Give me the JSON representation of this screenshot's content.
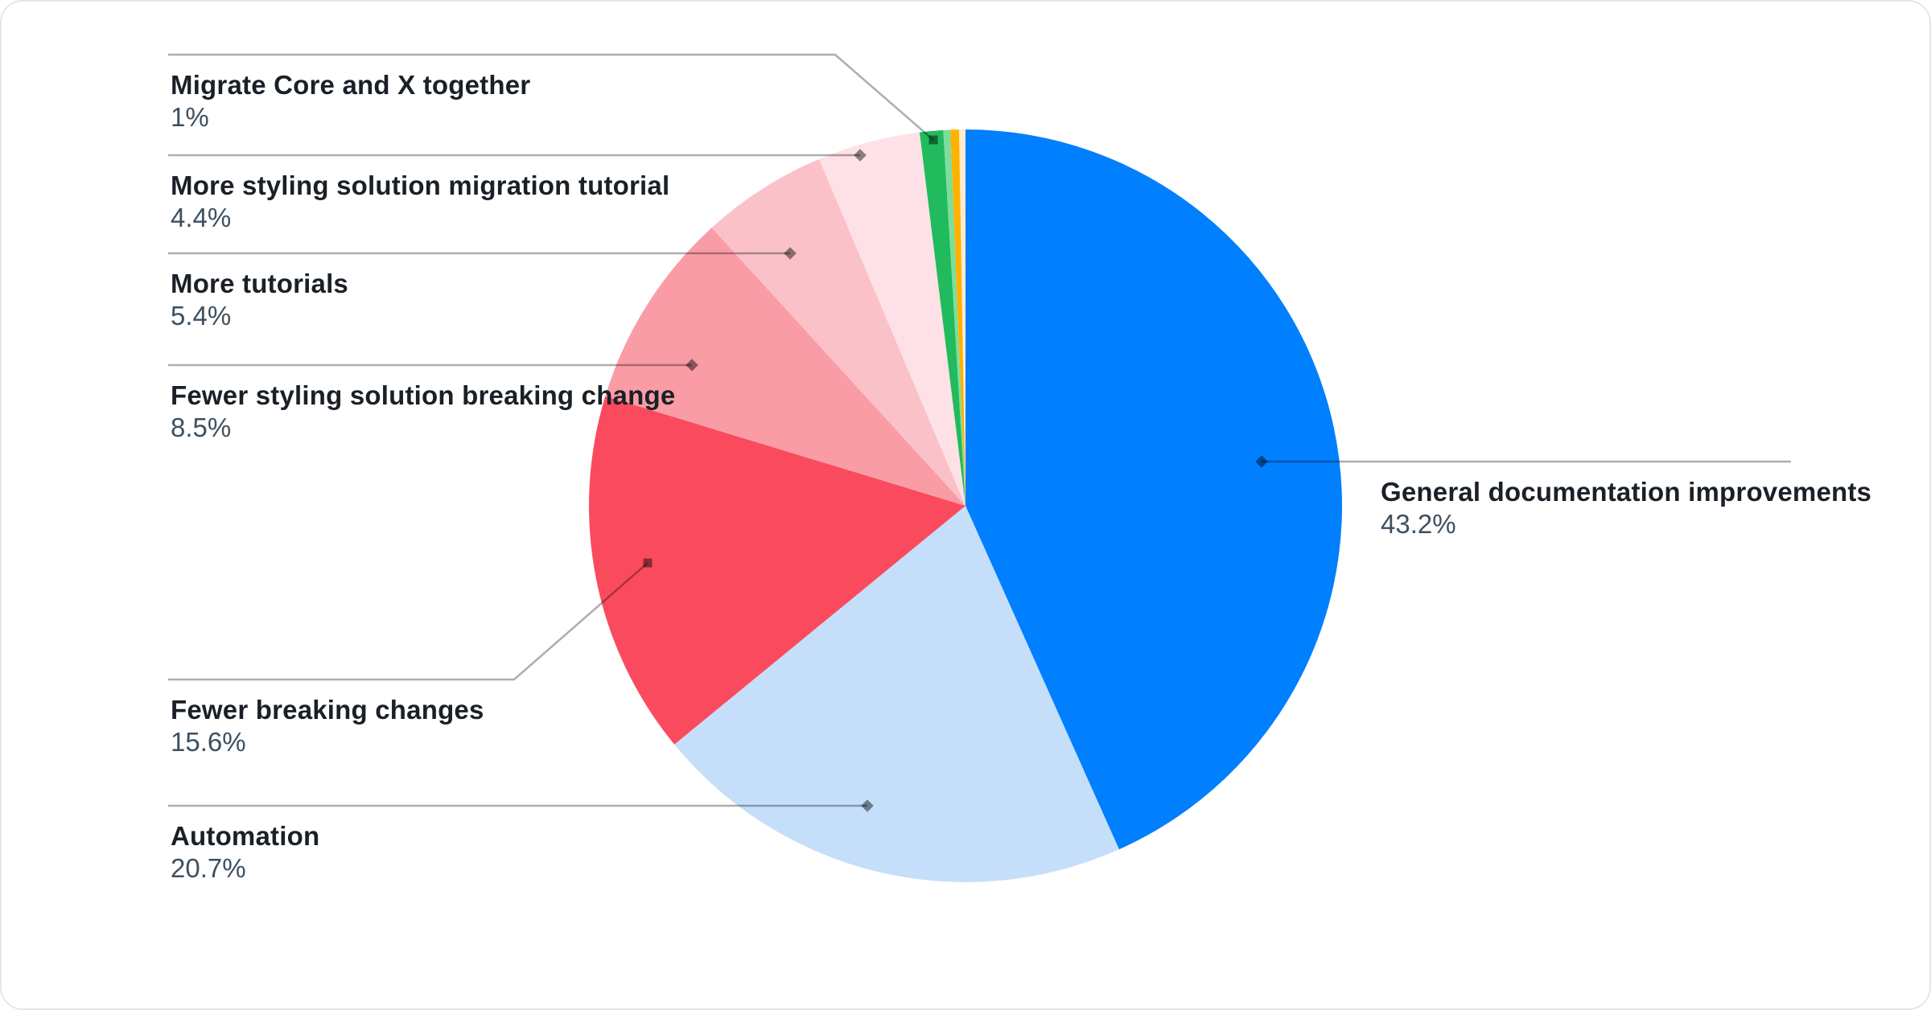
{
  "chart_data": {
    "type": "pie",
    "legend": "none",
    "labels_style": "callout-leader-lines",
    "start_angle_deg": 0,
    "direction": "clockwise",
    "slices": [
      {
        "label": "General documentation improvements",
        "pct_label": "43.2%",
        "value": 43.2,
        "color": "#007FFF"
      },
      {
        "label": "Automation",
        "pct_label": "20.7%",
        "value": 20.7,
        "color": "#C5DFFA"
      },
      {
        "label": "Fewer breaking changes",
        "pct_label": "15.6%",
        "value": 15.6,
        "color": "#FA4B5E"
      },
      {
        "label": "Fewer styling solution breaking change",
        "pct_label": "8.5%",
        "value": 8.5,
        "color": "#F99CA6"
      },
      {
        "label": "More tutorials",
        "pct_label": "5.4%",
        "value": 5.4,
        "color": "#FBC1C8"
      },
      {
        "label": "More styling solution migration tutorial",
        "pct_label": "4.4%",
        "value": 4.4,
        "color": "#FDE1E6"
      },
      {
        "label": "Migrate Core and X together",
        "pct_label": "1%",
        "value": 1.0,
        "color": "#21BA5C"
      },
      {
        "label": null,
        "pct_label": null,
        "value": 0.3,
        "color": "#7CDE9A"
      },
      {
        "label": null,
        "pct_label": null,
        "value": 0.37,
        "color": "#FFB100"
      },
      {
        "label": null,
        "pct_label": null,
        "value": 0.27,
        "color": "#FFEACB"
      }
    ],
    "styles": {
      "title_color": "#1A2027",
      "percent_color": "#3E5060",
      "leader_line_color": "rgba(0,0,0,0.32)",
      "marker_color": "rgba(0,0,0,0.45)",
      "card_border_color": "#E3E7EB"
    }
  }
}
